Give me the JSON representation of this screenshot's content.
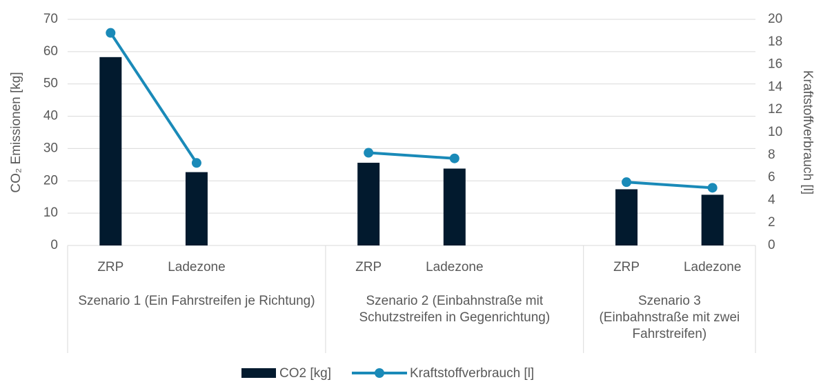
{
  "chart_data": {
    "type": "combo",
    "y_label": "CO₂ Emissionen [kg]",
    "y2_label": "Kraftstoffverbrauch [l]",
    "groups": [
      {
        "name": "Szenario 1 (Ein Fahrstreifen je Richtung)",
        "categories": [
          "ZRP",
          "Ladezone",
          null
        ]
      },
      {
        "name": "Szenario 2 (Einbahnstraße mit Schutzstreifen in Gegenrichtung)",
        "categories": [
          "ZRP",
          "Ladezone",
          null
        ]
      },
      {
        "name": "Szenario 3 (Einbahnstraße mit zwei Fahrstreifen)",
        "categories": [
          "ZRP",
          "Ladezone"
        ]
      }
    ],
    "series": [
      {
        "name": "CO2 [kg]",
        "type": "bar",
        "color": "#021a2e",
        "values": [
          58.3,
          22.7,
          null,
          25.6,
          23.8,
          null,
          17.4,
          15.7
        ]
      },
      {
        "name": "Kraftstoffverbrauch [l]",
        "type": "line",
        "axis": "y2",
        "color": "#1a8ab8",
        "values": [
          18.8,
          7.3,
          null,
          8.2,
          7.7,
          null,
          5.6,
          5.1
        ]
      }
    ],
    "ylim": [
      0,
      70
    ],
    "yticks": [
      0,
      10,
      20,
      30,
      40,
      50,
      60,
      70
    ],
    "y2lim": [
      0,
      20
    ],
    "y2ticks": [
      0,
      2,
      4,
      6,
      8,
      10,
      12,
      14,
      16,
      18,
      20
    ],
    "grid": true,
    "legend": "bottom"
  }
}
